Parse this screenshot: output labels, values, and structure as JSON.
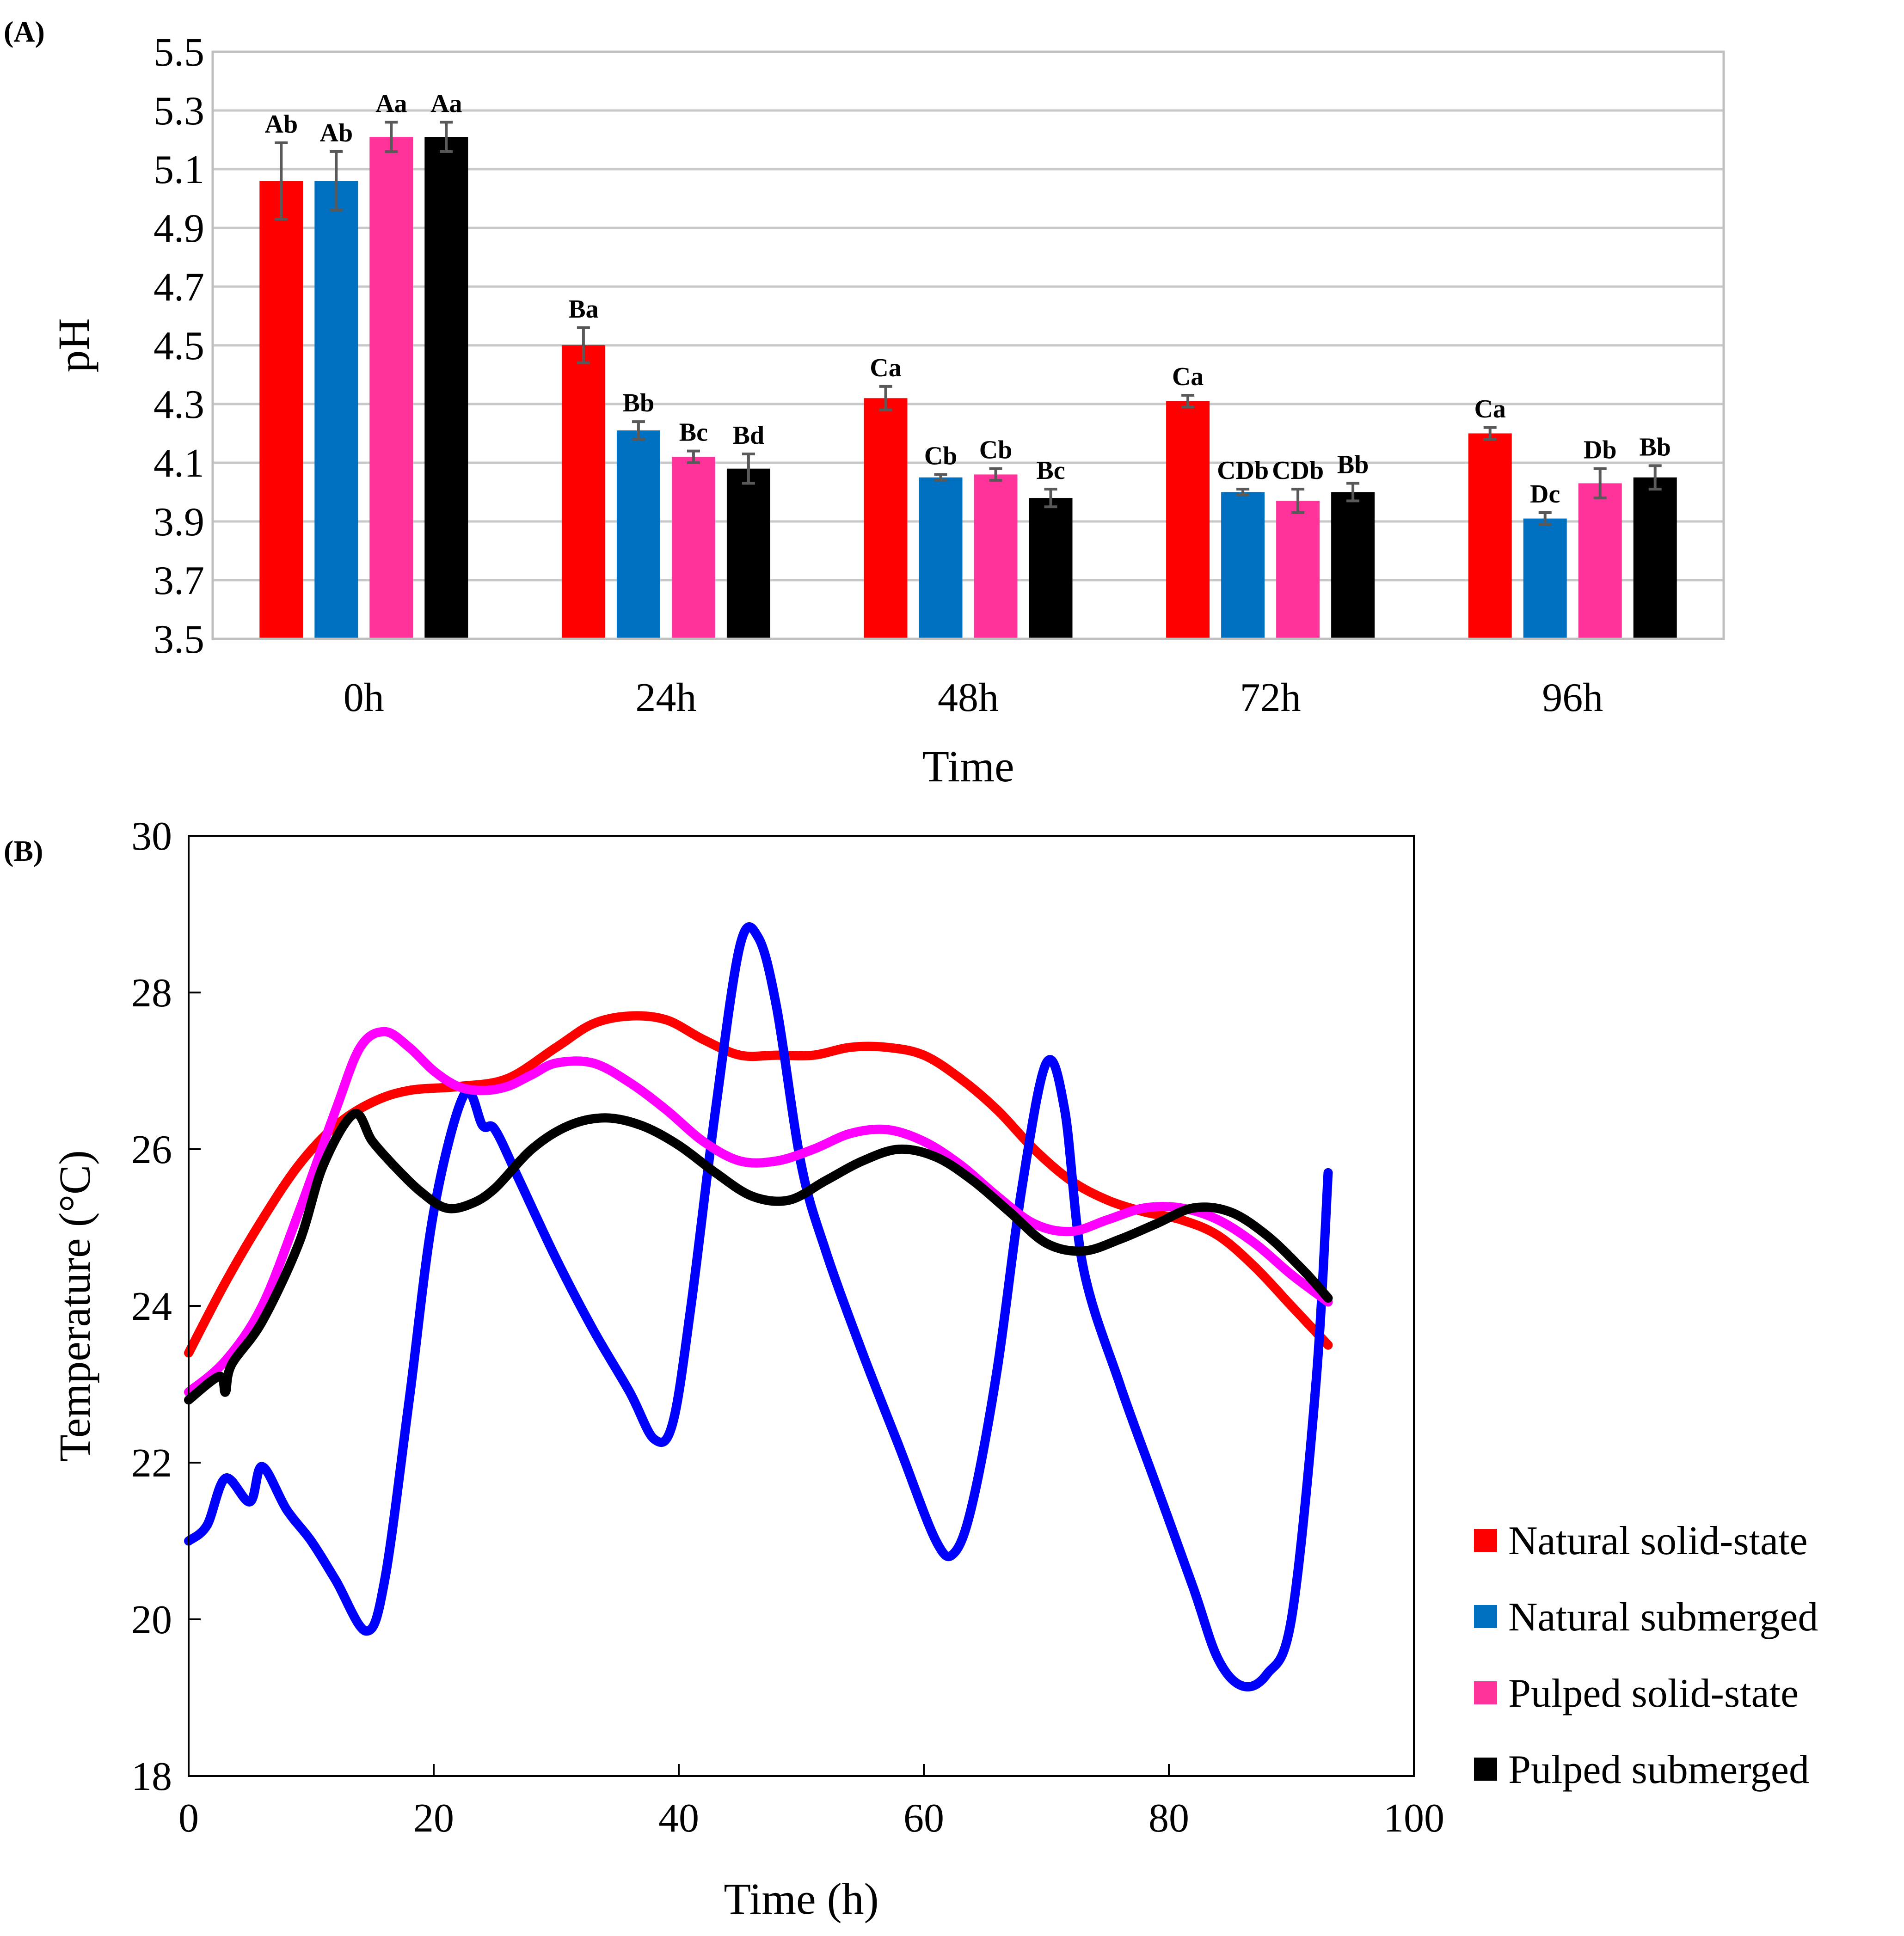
{
  "panel_a_label": "(A)",
  "panel_b_label": "(B)",
  "legend": {
    "items": [
      {
        "label": "Natural solid-state",
        "color": "#ff0000"
      },
      {
        "label": "Natural submerged",
        "color": "#0070c0"
      },
      {
        "label": "Pulped solid-state",
        "color": "#ff3399"
      },
      {
        "label": "Pulped submerged",
        "color": "#000000"
      }
    ]
  },
  "chart_data": [
    {
      "type": "bar",
      "title": "",
      "xlabel": "Time",
      "ylabel": "pH",
      "ylim": [
        3.5,
        5.5
      ],
      "yticks": [
        "3.5",
        "3.7",
        "3.9",
        "4.1",
        "4.3",
        "4.5",
        "4.7",
        "4.9",
        "5.1",
        "5.3",
        "5.5"
      ],
      "grid": true,
      "categories": [
        "0h",
        "24h",
        "48h",
        "72h",
        "96h"
      ],
      "series": [
        {
          "name": "Natural solid-state",
          "color": "#ff0000",
          "values": [
            5.06,
            4.5,
            4.32,
            4.31,
            4.2
          ],
          "errors": [
            0.13,
            0.06,
            0.04,
            0.02,
            0.02
          ],
          "labels": [
            "Ab",
            "Ba",
            "Ca",
            "Ca",
            "Ca"
          ]
        },
        {
          "name": "Natural submerged",
          "color": "#0070c0",
          "values": [
            5.06,
            4.21,
            4.05,
            4.0,
            3.91
          ],
          "errors": [
            0.1,
            0.03,
            0.01,
            0.01,
            0.02
          ],
          "labels": [
            "Ab",
            "Bb",
            "Cb",
            "CDb",
            "Dc"
          ]
        },
        {
          "name": "Pulped solid-state",
          "color": "#ff3399",
          "values": [
            5.21,
            4.12,
            4.06,
            3.97,
            4.03
          ],
          "errors": [
            0.05,
            0.02,
            0.02,
            0.04,
            0.05
          ],
          "labels": [
            "Aa",
            "Bc",
            "Cb",
            "CDb",
            "Db"
          ]
        },
        {
          "name": "Pulped submerged",
          "color": "#000000",
          "values": [
            5.21,
            4.08,
            3.98,
            4.0,
            4.05
          ],
          "errors": [
            0.05,
            0.05,
            0.03,
            0.03,
            0.04
          ],
          "labels": [
            "Aa",
            "Bd",
            "Bc",
            "Bb",
            "Bb"
          ]
        }
      ]
    },
    {
      "type": "line",
      "title": "",
      "xlabel": "Time (h)",
      "ylabel": "Temperature (°C)",
      "xlim": [
        0,
        100
      ],
      "ylim": [
        18,
        30
      ],
      "xticks": [
        "0",
        "20",
        "40",
        "60",
        "80",
        "100"
      ],
      "yticks": [
        "18",
        "20",
        "22",
        "24",
        "26",
        "28",
        "30"
      ],
      "grid": false,
      "series": [
        {
          "name": "Natural solid-state",
          "color": "#ff0000",
          "x": [
            0,
            3,
            6,
            9,
            12,
            15,
            18,
            22,
            26,
            30,
            33,
            36,
            39,
            42,
            45,
            48,
            51,
            54,
            57,
            60,
            63,
            66,
            69,
            72,
            75,
            78,
            81,
            84,
            87,
            90,
            93
          ],
          "y": [
            23.4,
            24.3,
            25.1,
            25.8,
            26.3,
            26.6,
            26.75,
            26.8,
            26.9,
            27.3,
            27.6,
            27.7,
            27.65,
            27.4,
            27.2,
            27.2,
            27.2,
            27.3,
            27.3,
            27.2,
            26.9,
            26.5,
            26.0,
            25.6,
            25.35,
            25.2,
            25.1,
            24.9,
            24.5,
            24.0,
            23.5
          ]
        },
        {
          "name": "Natural submerged",
          "color": "#0000ff",
          "x": [
            0,
            1.5,
            3,
            5,
            6,
            8,
            10,
            12,
            14.5,
            16,
            18,
            20,
            22.5,
            24,
            25,
            27,
            30,
            33,
            36,
            38,
            39.5,
            41,
            43,
            45,
            46.5,
            48,
            50,
            52,
            55,
            58,
            61,
            62.5,
            64,
            66,
            68,
            70,
            71.5,
            73,
            76,
            79,
            82,
            84,
            86,
            88,
            90,
            92,
            93
          ],
          "y": [
            21.0,
            21.2,
            21.8,
            21.5,
            21.95,
            21.4,
            21.0,
            20.5,
            19.85,
            20.5,
            22.8,
            25.2,
            26.7,
            26.3,
            26.25,
            25.6,
            24.6,
            23.7,
            22.9,
            22.3,
            22.5,
            24.0,
            26.5,
            28.6,
            28.7,
            27.8,
            25.8,
            24.7,
            23.4,
            22.2,
            21.0,
            20.85,
            21.5,
            23.2,
            25.5,
            27.1,
            26.5,
            24.5,
            23.0,
            21.7,
            20.4,
            19.5,
            19.15,
            19.3,
            20.0,
            23.0,
            25.7
          ]
        },
        {
          "name": "Pulped solid-state",
          "color": "#ff00ff",
          "x": [
            0,
            3,
            6,
            9,
            12,
            14,
            16,
            18,
            20,
            22,
            24,
            26,
            28,
            30,
            33,
            36,
            39,
            42,
            45,
            48,
            51,
            54,
            57,
            60,
            63,
            66,
            69,
            72,
            75,
            78,
            81,
            84,
            87,
            90,
            93
          ],
          "y": [
            22.9,
            23.3,
            24.0,
            25.2,
            26.5,
            27.3,
            27.5,
            27.3,
            27.0,
            26.8,
            26.75,
            26.8,
            26.95,
            27.1,
            27.1,
            26.85,
            26.5,
            26.1,
            25.85,
            25.85,
            26.0,
            26.2,
            26.25,
            26.1,
            25.8,
            25.4,
            25.05,
            24.95,
            25.1,
            25.25,
            25.25,
            25.1,
            24.8,
            24.4,
            24.05
          ]
        },
        {
          "name": "Pulped submerged",
          "color": "#000000",
          "x": [
            0,
            2.5,
            3,
            3.5,
            6,
            9,
            11,
            13.5,
            15,
            17,
            19,
            21,
            23,
            25,
            28,
            31,
            34,
            37,
            40,
            43,
            46,
            49,
            52,
            55,
            58,
            61,
            64,
            67,
            70,
            73,
            76,
            79,
            82,
            85,
            88,
            91,
            93
          ],
          "y": [
            22.8,
            23.1,
            22.9,
            23.25,
            23.8,
            24.8,
            25.8,
            26.45,
            26.1,
            25.75,
            25.45,
            25.25,
            25.3,
            25.5,
            26.0,
            26.3,
            26.4,
            26.3,
            26.05,
            25.7,
            25.4,
            25.35,
            25.6,
            25.85,
            26.0,
            25.9,
            25.6,
            25.2,
            24.8,
            24.7,
            24.85,
            25.05,
            25.25,
            25.2,
            24.9,
            24.45,
            24.1
          ]
        }
      ]
    }
  ]
}
